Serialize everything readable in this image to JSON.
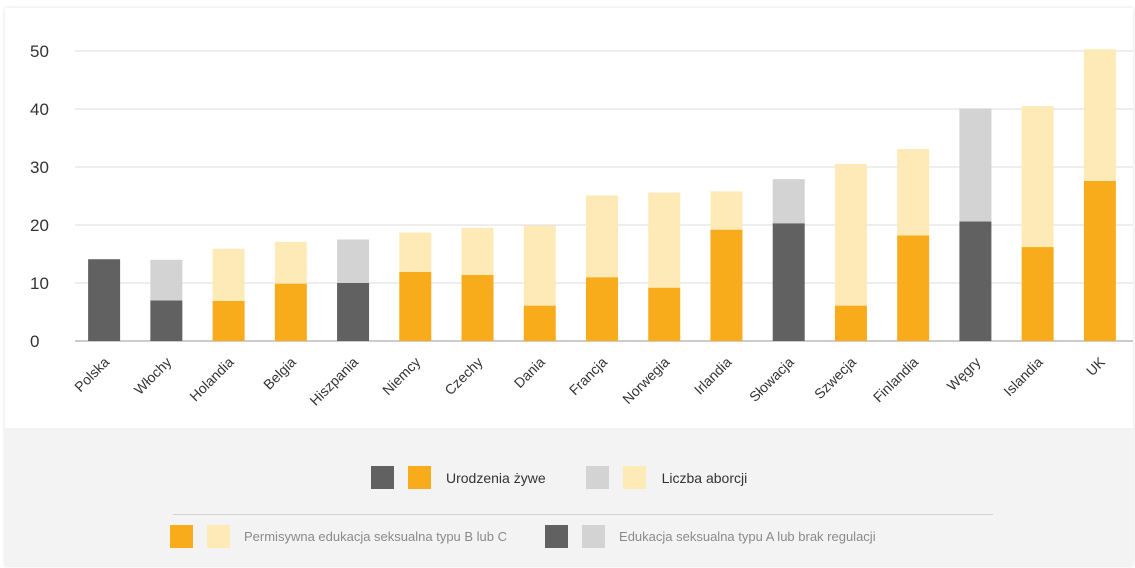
{
  "colors": {
    "dark": "#616161",
    "orange": "#f9ac1b",
    "light_gray": "#d3d3d3",
    "light_yellow": "#fdeab7",
    "grid": "#dddddd",
    "text": "#333333"
  },
  "legend": {
    "births_label": "Urodzenia żywe",
    "abortions_label": "Liczba aborcji",
    "permissive_label": "Permisywna edukacja seksualna typu B lub C",
    "restrictive_label": "Edukacja seksualna typu A lub brak regulacji"
  },
  "chart_data": {
    "type": "bar",
    "stacked": true,
    "categories": [
      "Polska",
      "Włochy",
      "Holandia",
      "Belgia",
      "Hiszpania",
      "Niemcy",
      "Czechy",
      "Dania",
      "Francja",
      "Norwegia",
      "Irlandia",
      "Słowacja",
      "Szwecja",
      "Finlandia",
      "Węgry",
      "Islandia",
      "UK"
    ],
    "education_type": [
      "A",
      "A",
      "BC",
      "BC",
      "A",
      "BC",
      "BC",
      "BC",
      "BC",
      "BC",
      "BC",
      "A",
      "BC",
      "BC",
      "A",
      "BC",
      "BC"
    ],
    "series": [
      {
        "name": "Urodzenia żywe",
        "values": [
          14.1,
          7.0,
          6.9,
          9.9,
          10.0,
          11.9,
          11.4,
          6.1,
          11.0,
          9.2,
          19.2,
          20.3,
          6.1,
          18.2,
          20.6,
          16.2,
          27.6
        ]
      },
      {
        "name": "Liczba aborcji",
        "values": [
          0,
          7.0,
          9.0,
          7.2,
          7.5,
          6.8,
          8.1,
          13.8,
          14.1,
          16.4,
          6.6,
          7.6,
          24.4,
          14.9,
          19.5,
          24.3,
          22.7
        ]
      }
    ],
    "yticks": [
      0,
      10,
      20,
      30,
      40,
      50
    ],
    "ylim": [
      0,
      50
    ],
    "grid": true,
    "legend_position": "bottom"
  }
}
